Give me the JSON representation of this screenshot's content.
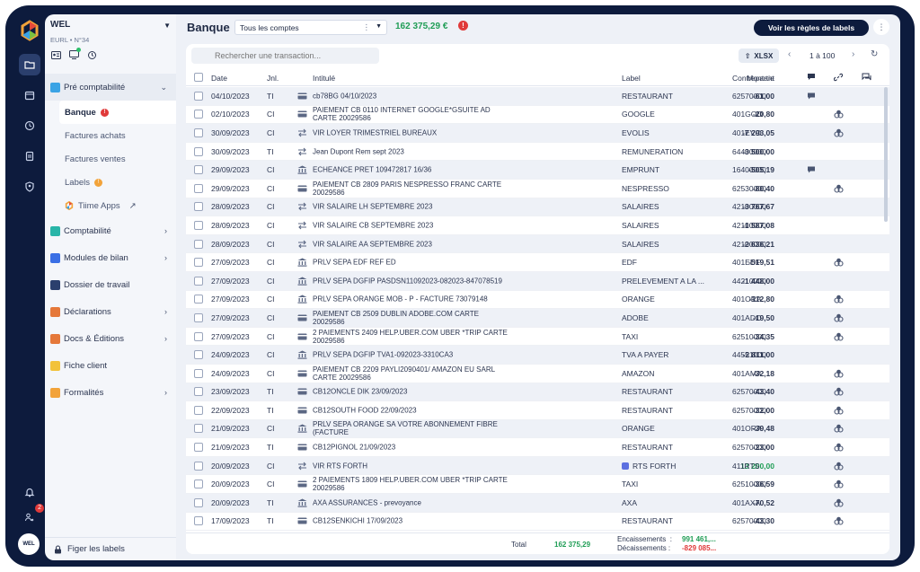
{
  "company": {
    "name": "WEL",
    "subtitle": "EURL • N°34"
  },
  "nav": {
    "pre_compta": "Pré comptabilité",
    "banque": "Banque",
    "achats": "Factures achats",
    "ventes": "Factures ventes",
    "labels": "Labels",
    "tiime_apps": "Tiime Apps",
    "comptabilite": "Comptabilité",
    "modules_bilan": "Modules de bilan",
    "dossier_travail": "Dossier de travail",
    "declarations": "Déclarations",
    "docs_editions": "Docs & Éditions",
    "fiche_client": "Fiche client",
    "formalites": "Formalités",
    "figer": "Figer les labels"
  },
  "rail": {
    "notif_count": "2",
    "avatar": "WEL"
  },
  "header": {
    "title": "Banque",
    "account_select": "Tous les comptes",
    "balance": "162 375,29 €",
    "rules_button": "Voir les règles de labels"
  },
  "toolbar": {
    "search_placeholder": "Rechercher une transaction...",
    "export_label": "XLSX",
    "pager": "1 à 100"
  },
  "columns": {
    "date": "Date",
    "jnl": "Jnl.",
    "intitule": "Intitulé",
    "montant": "Montant",
    "label": "Label",
    "contrepartie": "Contrepartie"
  },
  "rows": [
    {
      "date": "04/10/2023",
      "jnl": "TI",
      "icon": "card",
      "lib": "cb78BG 04/10/2023",
      "amt": "-61,00",
      "label": "RESTAURANT",
      "cp": "62570000",
      "comment": true,
      "link": false
    },
    {
      "date": "02/10/2023",
      "jnl": "CI",
      "icon": "card",
      "lib": "PAIEMENT CB 0110 INTERNET GOOGLE*GSUITE AD CARTE 20029586",
      "amt": "-20,80",
      "label": "GOOGLE",
      "cp": "401GOO",
      "comment": false,
      "link": true
    },
    {
      "date": "30/09/2023",
      "jnl": "CI",
      "icon": "transfer",
      "lib": "VIR LOYER TRIMESTRIEL BUREAUX",
      "amt": "-7 293,05",
      "label": "EVOLIS",
      "cp": "401EVO",
      "comment": false,
      "link": true
    },
    {
      "date": "30/09/2023",
      "jnl": "TI",
      "icon": "transfer",
      "lib": "Jean Dupont Rem sept 2023",
      "amt": "-3 500,00",
      "label": "REMUNERATION",
      "cp": "64400000",
      "comment": false,
      "link": false
    },
    {
      "date": "29/09/2023",
      "jnl": "CI",
      "icon": "bank",
      "lib": "ECHEANCE PRET 109472817 16/36",
      "amt": "-505,19",
      "label": "EMPRUNT",
      "cp": "16400000",
      "comment": true,
      "link": false
    },
    {
      "date": "29/09/2023",
      "jnl": "CI",
      "icon": "card",
      "lib": "PAIEMENT CB 2809 PARIS NESPRESSO FRANC CARTE 20029586",
      "amt": "-80,40",
      "label": "NESPRESSO",
      "cp": "62530000",
      "comment": false,
      "link": true
    },
    {
      "date": "28/09/2023",
      "jnl": "CI",
      "icon": "transfer",
      "lib": "VIR SALAIRE LH SEPTEMBRE 2023",
      "amt": "-3 767,67",
      "label": "SALAIRES",
      "cp": "42100000",
      "comment": false,
      "link": false
    },
    {
      "date": "28/09/2023",
      "jnl": "CI",
      "icon": "transfer",
      "lib": "VIR SALAIRE CB SEPTEMBRE 2023",
      "amt": "-1 587,08",
      "label": "SALAIRES",
      "cp": "42100000",
      "comment": false,
      "link": false
    },
    {
      "date": "28/09/2023",
      "jnl": "CI",
      "icon": "transfer",
      "lib": "VIR SALAIRE AA SEPTEMBRE 2023",
      "amt": "-2 636,21",
      "label": "SALAIRES",
      "cp": "42100000",
      "comment": false,
      "link": false
    },
    {
      "date": "27/09/2023",
      "jnl": "CI",
      "icon": "bank",
      "lib": "PRLV SEPA EDF REF ED",
      "amt": "-519,51",
      "label": "EDF",
      "cp": "401EDF",
      "comment": false,
      "link": true
    },
    {
      "date": "27/09/2023",
      "jnl": "CI",
      "icon": "bank",
      "lib": "PRLV SEPA DGFIP PASDSN11092023-082023-847078519",
      "amt": "-1 448,00",
      "label": "PRELEVEMENT A LA ...",
      "cp": "44210000",
      "comment": false,
      "link": false
    },
    {
      "date": "27/09/2023",
      "jnl": "CI",
      "icon": "bank",
      "lib": "PRLV SEPA ORANGE MOB - P - FACTURE 73079148",
      "amt": "-112,80",
      "label": "ORANGE",
      "cp": "401ORA",
      "comment": false,
      "link": true
    },
    {
      "date": "27/09/2023",
      "jnl": "CI",
      "icon": "card",
      "lib": "PAIEMENT CB 2509 DUBLIN ADOBE.COM CARTE 20029586",
      "amt": "-19,50",
      "label": "ADOBE",
      "cp": "401ADO",
      "comment": false,
      "link": true
    },
    {
      "date": "27/09/2023",
      "jnl": "CI",
      "icon": "card",
      "lib": "2 PAIEMENTS 2409 HELP.UBER.COM UBER *TRIP CARTE 20029586",
      "amt": "-34,35",
      "label": "TAXI",
      "cp": "62510000",
      "comment": false,
      "link": true
    },
    {
      "date": "24/09/2023",
      "jnl": "CI",
      "icon": "bank",
      "lib": "PRLV SEPA DGFIP TVA1-092023-3310CA3",
      "amt": "-2 811,00",
      "label": "TVA A PAYER",
      "cp": "44551000",
      "comment": false,
      "link": false
    },
    {
      "date": "24/09/2023",
      "jnl": "CI",
      "icon": "card",
      "lib": "PAIEMENT CB 2209 PAYLI2090401/ AMAZON EU SARL CARTE 20029586",
      "amt": "-32,18",
      "label": "AMAZON",
      "cp": "401AMA",
      "comment": false,
      "link": true
    },
    {
      "date": "23/09/2023",
      "jnl": "TI",
      "icon": "card",
      "lib": "CB12ONCLE DIK 23/09/2023",
      "amt": "-43,40",
      "label": "RESTAURANT",
      "cp": "62570000",
      "comment": false,
      "link": true
    },
    {
      "date": "22/09/2023",
      "jnl": "TI",
      "icon": "card",
      "lib": "CB12SOUTH FOOD 22/09/2023",
      "amt": "-32,00",
      "label": "RESTAURANT",
      "cp": "62570000",
      "comment": false,
      "link": true
    },
    {
      "date": "21/09/2023",
      "jnl": "CI",
      "icon": "bank",
      "lib": "PRLV SEPA ORANGE SA VOTRE ABONNEMENT FIBRE (FACTURE",
      "amt": "-39,48",
      "label": "ORANGE",
      "cp": "401ORA",
      "comment": false,
      "link": true
    },
    {
      "date": "21/09/2023",
      "jnl": "TI",
      "icon": "card",
      "lib": "CB12PIGNOL 21/09/2023",
      "amt": "-23,00",
      "label": "RESTAURANT",
      "cp": "62570000",
      "comment": false,
      "link": true
    },
    {
      "date": "20/09/2023",
      "jnl": "CI",
      "icon": "transfer",
      "lib": "VIR RTS FORTH",
      "amt": "13 200,00",
      "label": "RTS FORTH",
      "cp": "411RTS",
      "comment": false,
      "link": true,
      "positive": true
    },
    {
      "date": "20/09/2023",
      "jnl": "CI",
      "icon": "card",
      "lib": "2 PAIEMENTS 1809 HELP.UBER.COM UBER *TRIP CARTE 20029586",
      "amt": "-36,59",
      "label": "TAXI",
      "cp": "62510000",
      "comment": false,
      "link": true
    },
    {
      "date": "20/09/2023",
      "jnl": "TI",
      "icon": "bank",
      "lib": "AXA ASSURANCES - prevoyance",
      "amt": "-70,52",
      "label": "AXA",
      "cp": "401AXA",
      "comment": false,
      "link": true
    },
    {
      "date": "17/09/2023",
      "jnl": "TI",
      "icon": "card",
      "lib": "CB12SENKICHI 17/09/2023",
      "amt": "-43,30",
      "label": "RESTAURANT",
      "cp": "62570000",
      "comment": false,
      "link": true
    }
  ],
  "footer": {
    "total_label": "Total",
    "total_value": "162 375,29",
    "enc_label": "Encaissements",
    "enc_value": "991 461,...",
    "dec_label": "Décaissements",
    "dec_value": "-829 085..."
  }
}
